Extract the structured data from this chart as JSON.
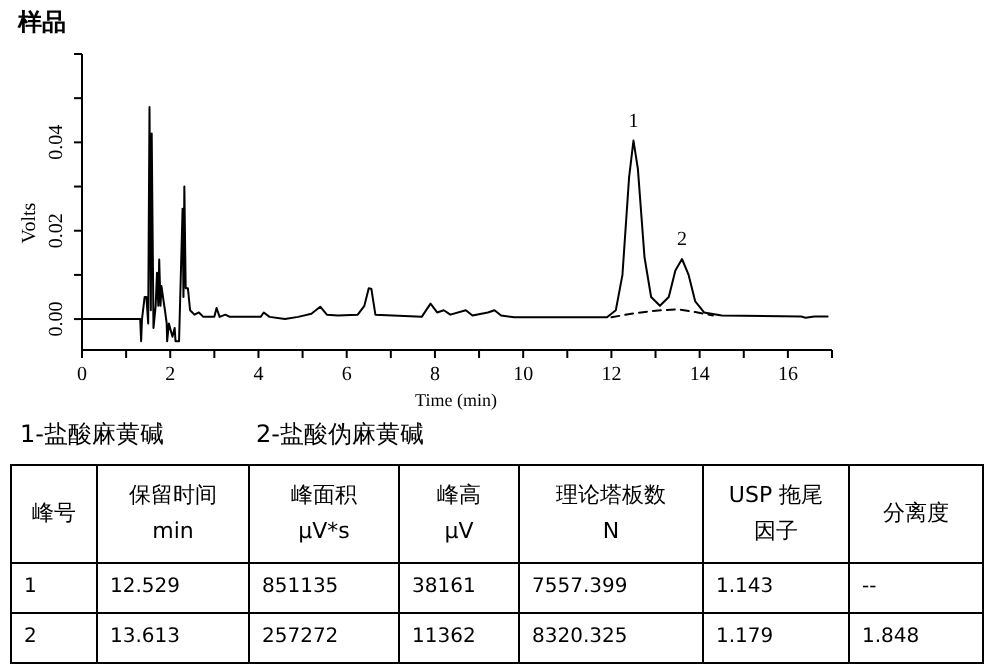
{
  "chart_data": {
    "type": "line",
    "title": "样品",
    "xlabel": "Time (min)",
    "ylabel": "Volts",
    "xlim": [
      0,
      17
    ],
    "xticks": [
      0,
      {
        "value": 1,
        "label": null
      },
      2,
      {
        "value": 3,
        "label": null
      },
      4,
      {
        "value": 5,
        "label": null
      },
      6,
      {
        "value": 7,
        "label": null
      },
      8,
      {
        "value": 9,
        "label": null
      },
      10,
      {
        "value": 11,
        "label": null
      },
      12,
      {
        "value": 13,
        "label": null
      },
      14,
      {
        "value": 15,
        "label": null
      },
      16,
      {
        "value": 17,
        "label": null
      }
    ],
    "ylim": [
      -0.007,
      0.06
    ],
    "yticks": [
      {
        "value": 0,
        "label": "0.00"
      },
      {
        "value": 0.01,
        "label": null
      },
      {
        "value": 0.02,
        "label": "0.02"
      },
      {
        "value": 0.03,
        "label": null
      },
      {
        "value": 0.04,
        "label": "0.04"
      },
      {
        "value": 0.05,
        "label": null
      },
      {
        "value": 0.06,
        "label": null
      }
    ],
    "grid": false,
    "legend": false,
    "marker": "none",
    "series": [
      {
        "color": "#000000",
        "line_style": "solid",
        "x": [
          0,
          1.32,
          1.34,
          1.36,
          1.42,
          1.46,
          1.5,
          1.53,
          1.56,
          1.58,
          1.62,
          1.67,
          1.7,
          1.73,
          1.75,
          1.78,
          1.8,
          1.85,
          1.88,
          1.92,
          1.93,
          1.97,
          2.05,
          2.1,
          2.12,
          2.2,
          2.28,
          2.3,
          2.32,
          2.35,
          2.4,
          2.45,
          2.55,
          2.65,
          2.75,
          3.0,
          3.05,
          3.12,
          3.25,
          3.35,
          4.05,
          4.12,
          4.25,
          4.6,
          4.9,
          5.2,
          5.4,
          5.55,
          5.8,
          6.25,
          6.4,
          6.5,
          6.56,
          6.65,
          7.7,
          7.9,
          8.05,
          8.2,
          8.35,
          8.7,
          8.85,
          9.2,
          9.35,
          9.5,
          9.8,
          11.9,
          12.1,
          12.25,
          12.4,
          12.5,
          12.6,
          12.75,
          12.9,
          13.1,
          13.3,
          13.45,
          13.6,
          13.75,
          13.9,
          14.1,
          14.5,
          16.3,
          16.4,
          16.6,
          16.9
        ],
        "values": [
          0,
          0,
          -0.005,
          0,
          0.005,
          0.005,
          -0.001,
          0.048,
          0.002,
          0.042,
          -0.002,
          0.003,
          0.0105,
          0.003,
          0.0135,
          0.003,
          0.0075,
          0.004,
          0.002,
          -0.001,
          -0.005,
          -0.001,
          -0.004,
          -0.002,
          -0.005,
          -0.005,
          0.025,
          0.005,
          0.03,
          0.007,
          0.007,
          0.002,
          0.001,
          0.0015,
          0.0005,
          0.0005,
          0.0025,
          0.0005,
          0.001,
          0.0005,
          0.0005,
          0.0015,
          0.0005,
          0,
          0.0005,
          0.0012,
          0.0028,
          0.001,
          0.0008,
          0.001,
          0.003,
          0.007,
          0.0068,
          0.001,
          0.0005,
          0.0035,
          0.0015,
          0.002,
          0.001,
          0.002,
          0.0008,
          0.0015,
          0.002,
          0.0008,
          0.0004,
          0.0004,
          0.002,
          0.01,
          0.032,
          0.0404,
          0.034,
          0.014,
          0.005,
          0.003,
          0.005,
          0.011,
          0.0136,
          0.01,
          0.004,
          0.0015,
          0.0008,
          0.0006,
          0.0003,
          0.0006,
          0.0006
        ]
      },
      {
        "color": "#000000",
        "line_style": "dashed",
        "x": [
          12,
          12.5,
          13.0,
          13.5,
          13.9,
          14.3
        ],
        "values": [
          0.0004,
          0.0013,
          0.0019,
          0.0022,
          0.0016,
          0.0008
        ]
      }
    ],
    "annotations": [
      {
        "text": "1",
        "x": 12.5,
        "y": 0.0404
      },
      {
        "text": "2",
        "x": 13.6,
        "y": 0.0136
      },
      "1-盐酸麻黄碱",
      "2-盐酸伪麻黄碱",
      "峰号",
      "保留时间\nmin",
      "峰面积\nμV*s",
      "峰高\nμV",
      "理论塔板数\nN",
      "USP 拖尾因子",
      "分离度",
      "1",
      "12.529",
      "851135",
      "38161",
      "7557.399",
      "1.143",
      "--",
      "2",
      "13.613",
      "257272",
      "11362",
      "8320.325",
      "1.179",
      "1.848"
    ]
  }
}
